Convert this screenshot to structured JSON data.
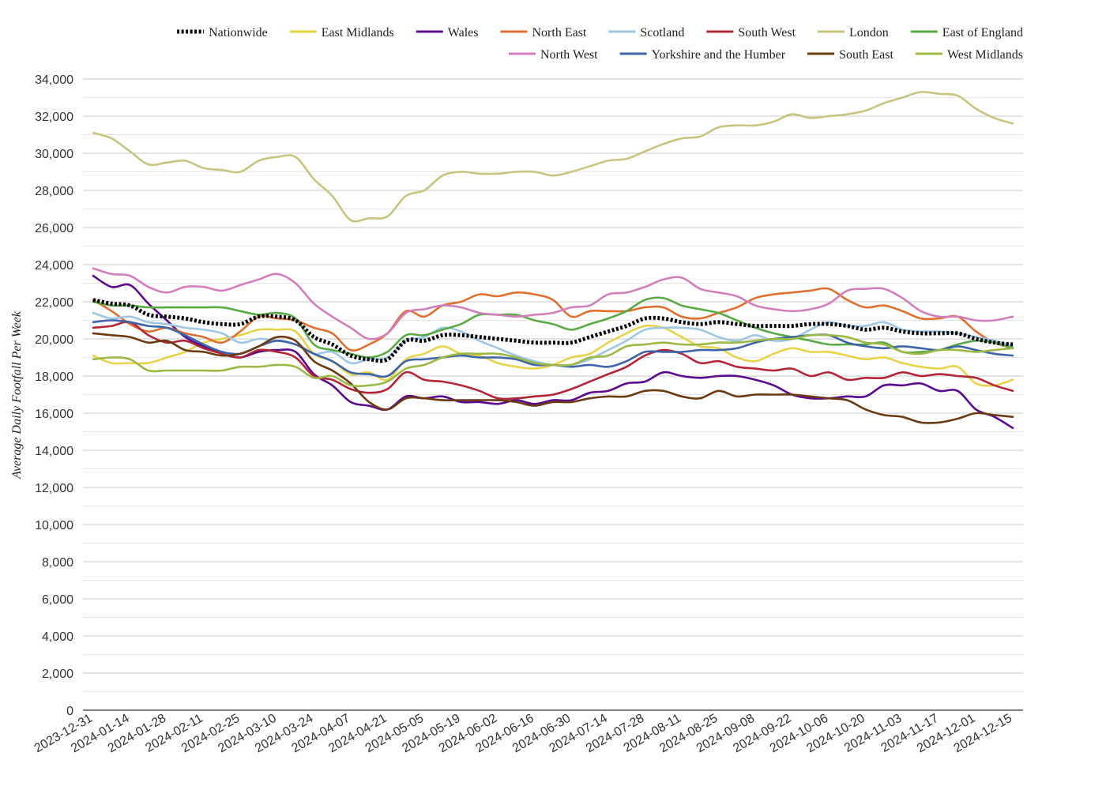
{
  "chart_data": {
    "type": "line",
    "title": "",
    "xlabel": "",
    "ylabel": "Average Daily Footfall Per Week",
    "ylim": [
      0,
      34000
    ],
    "yticks": [
      "0",
      "2,000",
      "4,000",
      "6,000",
      "8,000",
      "10,000",
      "12,000",
      "14,000",
      "16,000",
      "18,000",
      "20,000",
      "22,000",
      "24,000",
      "26,000",
      "28,000",
      "30,000",
      "32,000",
      "34,000"
    ],
    "xticks": [
      "2023-12-31",
      "2024-01-14",
      "2024-01-28",
      "2024-02-11",
      "2024-02-25",
      "2024-03-10",
      "2024-03-24",
      "2024-04-07",
      "2024-04-21",
      "2024-05-05",
      "2024-05-19",
      "2024-06-02",
      "2024-06-16",
      "2024-06-30",
      "2024-07-14",
      "2024-07-28",
      "2024-08-11",
      "2024-08-25",
      "2024-09-08",
      "2024-09-22",
      "2024-10-06",
      "2024-10-20",
      "2024-11-03",
      "2024-11-17",
      "2024-12-01",
      "2024-12-15"
    ],
    "grid": true,
    "legend": "top",
    "x": [
      "2023-12-31",
      "2024-01-07",
      "2024-01-14",
      "2024-01-21",
      "2024-01-28",
      "2024-02-04",
      "2024-02-11",
      "2024-02-18",
      "2024-02-25",
      "2024-03-03",
      "2024-03-10",
      "2024-03-17",
      "2024-03-24",
      "2024-03-31",
      "2024-04-07",
      "2024-04-14",
      "2024-04-21",
      "2024-04-28",
      "2024-05-05",
      "2024-05-12",
      "2024-05-19",
      "2024-05-26",
      "2024-06-02",
      "2024-06-09",
      "2024-06-16",
      "2024-06-23",
      "2024-06-30",
      "2024-07-07",
      "2024-07-14",
      "2024-07-21",
      "2024-07-28",
      "2024-08-04",
      "2024-08-11",
      "2024-08-18",
      "2024-08-25",
      "2024-09-01",
      "2024-09-08",
      "2024-09-15",
      "2024-09-22",
      "2024-09-29",
      "2024-10-06",
      "2024-10-13",
      "2024-10-20",
      "2024-10-27",
      "2024-11-03",
      "2024-11-10",
      "2024-11-17",
      "2024-11-24",
      "2024-12-01",
      "2024-12-08",
      "2024-12-15"
    ],
    "series": [
      {
        "name": "Nationwide",
        "color": "#000000",
        "dashed": true,
        "values": [
          22100,
          21900,
          21800,
          21300,
          21200,
          21100,
          20900,
          20800,
          20800,
          21200,
          21200,
          21000,
          20100,
          19700,
          19100,
          18900,
          18900,
          19900,
          19900,
          20200,
          20200,
          20100,
          20000,
          19900,
          19800,
          19800,
          19800,
          20100,
          20400,
          20700,
          21100,
          21100,
          20900,
          20800,
          20900,
          20800,
          20700,
          20700,
          20700,
          20800,
          20800,
          20700,
          20500,
          20600,
          20400,
          20300,
          20300,
          20300,
          20000,
          19800,
          19700
        ]
      },
      {
        "name": "East Midlands",
        "color": "#e8d44a",
        "values": [
          19100,
          18700,
          18700,
          18700,
          19000,
          19300,
          19800,
          20000,
          20200,
          20500,
          20500,
          20400,
          19200,
          18800,
          18100,
          18200,
          17800,
          18900,
          19200,
          19600,
          19200,
          19100,
          18700,
          18500,
          18400,
          18600,
          19000,
          19200,
          19800,
          20300,
          20700,
          20600,
          20100,
          19600,
          19500,
          19000,
          18800,
          19200,
          19500,
          19300,
          19300,
          19100,
          18900,
          19000,
          18700,
          18500,
          18400,
          18500,
          17600,
          17500,
          17800
        ]
      },
      {
        "name": "Wales",
        "color": "#5b0a8f",
        "values": [
          23400,
          22800,
          22900,
          21900,
          21000,
          20100,
          19600,
          19200,
          19000,
          19300,
          19400,
          19300,
          18100,
          17500,
          16600,
          16400,
          16200,
          16900,
          16800,
          16900,
          16600,
          16600,
          16500,
          16700,
          16500,
          16700,
          16700,
          17100,
          17200,
          17600,
          17700,
          18200,
          18000,
          17900,
          18000,
          18000,
          17800,
          17500,
          17000,
          16800,
          16800,
          16900,
          16900,
          17500,
          17500,
          17600,
          17200,
          17200,
          16200,
          15800,
          15200
        ]
      },
      {
        "name": "North East",
        "color": "#e07030",
        "values": [
          22100,
          21500,
          20800,
          20400,
          20600,
          20300,
          20100,
          19800,
          20400,
          21200,
          21100,
          21000,
          20600,
          20300,
          19400,
          19700,
          20300,
          21500,
          21200,
          21800,
          22000,
          22400,
          22300,
          22500,
          22400,
          22100,
          21200,
          21500,
          21500,
          21500,
          21700,
          21700,
          21200,
          21100,
          21400,
          21700,
          22200,
          22400,
          22500,
          22600,
          22700,
          22100,
          21700,
          21800,
          21500,
          21100,
          21100,
          21200,
          20400,
          19800,
          19500
        ]
      },
      {
        "name": "Scotland",
        "color": "#9ec7e3",
        "values": [
          21400,
          21100,
          21200,
          20900,
          20800,
          20600,
          20500,
          20300,
          19800,
          20000,
          19900,
          19700,
          19200,
          19300,
          18700,
          18900,
          19000,
          19900,
          20100,
          20600,
          20400,
          19900,
          19500,
          19100,
          18800,
          18600,
          18600,
          18900,
          19400,
          19900,
          20500,
          20600,
          20600,
          20500,
          20100,
          19900,
          20200,
          19900,
          20000,
          20500,
          20900,
          20700,
          20700,
          20900,
          20500,
          20400,
          20400,
          20300,
          20100,
          19900,
          19600
        ]
      },
      {
        "name": "South West",
        "color": "#b52538",
        "values": [
          20600,
          20700,
          20900,
          20200,
          19800,
          19900,
          19500,
          19200,
          19000,
          19400,
          19300,
          19000,
          18000,
          17800,
          17300,
          17100,
          17300,
          18200,
          17800,
          17700,
          17500,
          17200,
          16800,
          16800,
          16900,
          17000,
          17300,
          17700,
          18100,
          18500,
          19100,
          19400,
          19200,
          18700,
          18800,
          18500,
          18400,
          18300,
          18400,
          18000,
          18200,
          17800,
          17900,
          17900,
          18200,
          18000,
          18100,
          18000,
          17900,
          17500,
          17200
        ]
      },
      {
        "name": "London",
        "color": "#c8c57f",
        "values": [
          31100,
          30800,
          30100,
          29400,
          29500,
          29600,
          29200,
          29100,
          29000,
          29600,
          29800,
          29800,
          28600,
          27700,
          26400,
          26500,
          26600,
          27700,
          28000,
          28800,
          29000,
          28900,
          28900,
          29000,
          29000,
          28800,
          29000,
          29300,
          29600,
          29700,
          30100,
          30500,
          30800,
          30900,
          31400,
          31500,
          31500,
          31700,
          32100,
          31900,
          32000,
          32100,
          32300,
          32700,
          33000,
          33300,
          33200,
          33100,
          32400,
          31900,
          31600
        ]
      },
      {
        "name": "East of England",
        "color": "#5aab45",
        "values": [
          22000,
          21800,
          21800,
          21700,
          21700,
          21700,
          21700,
          21700,
          21500,
          21300,
          21400,
          21100,
          19700,
          19400,
          19200,
          19000,
          19300,
          20200,
          20200,
          20500,
          20800,
          21300,
          21300,
          21300,
          21000,
          20800,
          20500,
          20800,
          21100,
          21500,
          22100,
          22200,
          21800,
          21600,
          21400,
          21000,
          20600,
          20300,
          20100,
          19900,
          19700,
          19700,
          19700,
          19800,
          19300,
          19300,
          19400,
          19700,
          19900,
          19800,
          19500
        ]
      },
      {
        "name": "North West",
        "color": "#d37fbc",
        "values": [
          23800,
          23500,
          23400,
          22800,
          22500,
          22800,
          22800,
          22600,
          22900,
          23200,
          23500,
          23000,
          21900,
          21200,
          20600,
          20000,
          20300,
          21400,
          21600,
          21800,
          21700,
          21400,
          21300,
          21200,
          21300,
          21400,
          21700,
          21800,
          22400,
          22500,
          22800,
          23200,
          23300,
          22700,
          22500,
          22300,
          21800,
          21600,
          21500,
          21600,
          21900,
          22600,
          22700,
          22700,
          22200,
          21500,
          21200,
          21200,
          21000,
          21000,
          21200
        ]
      },
      {
        "name": "Yorkshire and the Humber",
        "color": "#3e64a8",
        "values": [
          20900,
          21000,
          20900,
          20700,
          20600,
          20200,
          19700,
          19300,
          19200,
          19600,
          19900,
          19700,
          19200,
          18800,
          18200,
          18100,
          18000,
          18800,
          18900,
          19000,
          19100,
          19000,
          19000,
          18900,
          18600,
          18600,
          18500,
          18600,
          18500,
          18800,
          19300,
          19300,
          19300,
          19400,
          19400,
          19500,
          19800,
          20000,
          20100,
          20200,
          20200,
          19800,
          19600,
          19500,
          19600,
          19500,
          19400,
          19600,
          19400,
          19200,
          19100
        ]
      },
      {
        "name": "South East",
        "color": "#6b3b12",
        "values": [
          20300,
          20200,
          20100,
          19800,
          19900,
          19400,
          19300,
          19100,
          19200,
          19600,
          20100,
          19900,
          18800,
          18300,
          17600,
          16600,
          16200,
          16800,
          16800,
          16700,
          16700,
          16700,
          16700,
          16600,
          16400,
          16600,
          16600,
          16800,
          16900,
          16900,
          17200,
          17200,
          16900,
          16800,
          17200,
          16900,
          17000,
          17000,
          17000,
          16900,
          16800,
          16700,
          16200,
          15900,
          15800,
          15500,
          15500,
          15700,
          16000,
          15900,
          15800
        ]
      },
      {
        "name": "West Midlands",
        "color": "#9cb845",
        "values": [
          18900,
          19000,
          18900,
          18300,
          18300,
          18300,
          18300,
          18300,
          18500,
          18500,
          18600,
          18500,
          17900,
          18000,
          17500,
          17500,
          17700,
          18400,
          18600,
          19000,
          19200,
          19200,
          19200,
          19000,
          18700,
          18600,
          18600,
          19000,
          19100,
          19600,
          19700,
          19800,
          19700,
          19700,
          19800,
          19800,
          19900,
          20000,
          20000,
          20200,
          20200,
          20100,
          19800,
          19700,
          19300,
          19200,
          19400,
          19400,
          19300,
          19400,
          19500
        ]
      }
    ]
  }
}
